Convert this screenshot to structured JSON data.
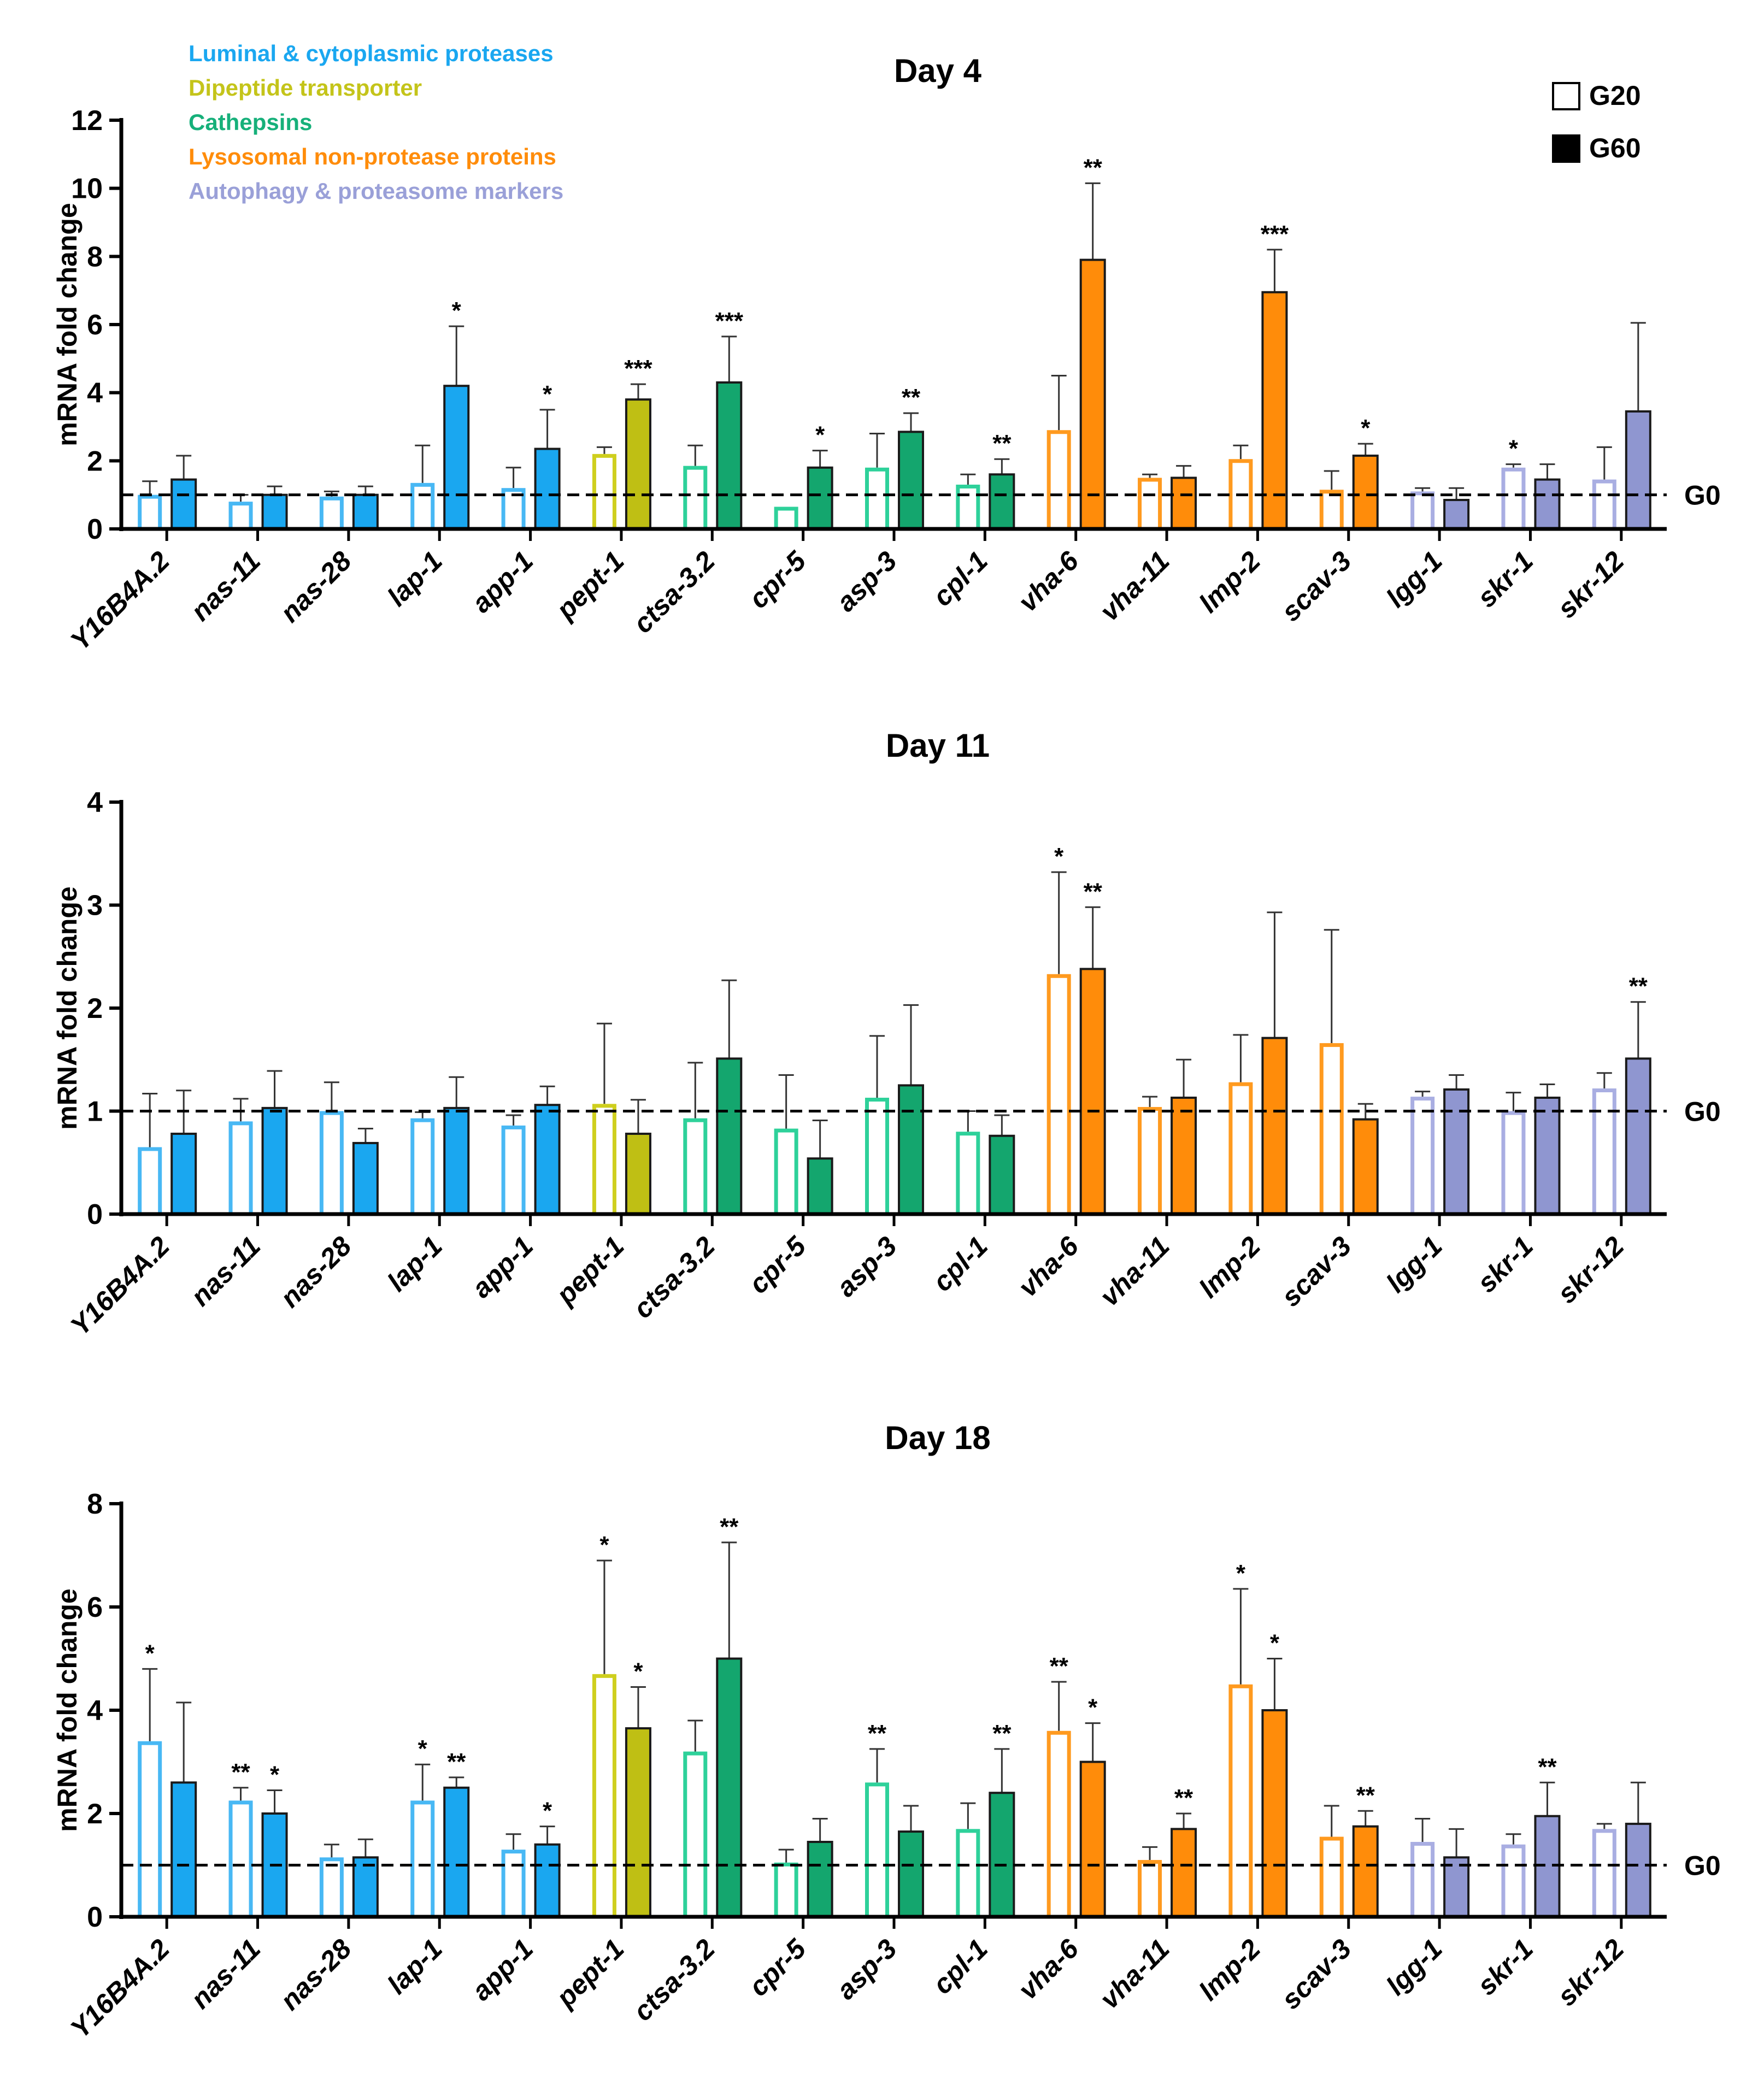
{
  "genes": [
    "Y16B4A.2",
    "nas-11",
    "nas-28",
    "lap-1",
    "app-1",
    "pept-1",
    "ctsa-3.2",
    "cpr-5",
    "asp-3",
    "cpl-1",
    "vha-6",
    "vha-11",
    "lmp-2",
    "scav-3",
    "lgg-1",
    "skr-1",
    "skr-12"
  ],
  "gene_groups": [
    0,
    0,
    0,
    0,
    0,
    1,
    2,
    2,
    2,
    2,
    3,
    3,
    3,
    3,
    4,
    4,
    4
  ],
  "category_legend": [
    {
      "label": "Luminal & cytoplasmic proteases",
      "color": "#1aa7f0"
    },
    {
      "label": "Dipeptide transporter",
      "color": "#c4c41a"
    },
    {
      "label": "Cathepsins",
      "color": "#16b07a"
    },
    {
      "label": "Lysosomal non-protease proteins",
      "color": "#ff8c0a"
    },
    {
      "label": "Autophagy & proteasome markers",
      "color": "#9aa0d8"
    }
  ],
  "palette": {
    "outline": [
      "#48b8f4",
      "#cfcf1e",
      "#2ed19a",
      "#ff9a1f",
      "#a9aee2"
    ],
    "fill": [
      "#1aa7f0",
      "#bfbf14",
      "#14a66e",
      "#ff8c0a",
      "#8f96d0"
    ]
  },
  "source_legend": [
    {
      "label": "G20",
      "style": "open"
    },
    {
      "label": "G60",
      "style": "filled"
    }
  ],
  "reference_label": "G0",
  "chart_data": [
    {
      "type": "bar",
      "title": "Day 4",
      "ylabel": "mRNA fold change",
      "ylim": [
        0,
        12
      ],
      "yticks": [
        0,
        2,
        4,
        6,
        8,
        10,
        12
      ],
      "reference_line": 1,
      "categories": [
        "Y16B4A.2",
        "nas-11",
        "nas-28",
        "lap-1",
        "app-1",
        "pept-1",
        "ctsa-3.2",
        "cpr-5",
        "asp-3",
        "cpl-1",
        "vha-6",
        "vha-11",
        "lmp-2",
        "scav-3",
        "lgg-1",
        "skr-1",
        "skr-12"
      ],
      "series": [
        {
          "name": "G20",
          "values": [
            1.0,
            0.8,
            0.95,
            1.35,
            1.2,
            2.2,
            1.85,
            0.65,
            1.8,
            1.3,
            2.9,
            1.5,
            2.05,
            1.15,
            1.1,
            1.8,
            1.45
          ],
          "errors": [
            0.4,
            0.2,
            0.15,
            1.1,
            0.6,
            0.2,
            0.6,
            0.0,
            1.0,
            0.3,
            1.6,
            0.1,
            0.4,
            0.55,
            0.1,
            0.1,
            0.95
          ],
          "stars": [
            "",
            "",
            "",
            "",
            "",
            "",
            "",
            "",
            "",
            "",
            "",
            "",
            "",
            "",
            "",
            "*",
            ""
          ]
        },
        {
          "name": "G60",
          "values": [
            1.45,
            1.0,
            1.0,
            4.2,
            2.35,
            3.8,
            4.3,
            1.8,
            2.85,
            1.6,
            7.9,
            1.5,
            6.95,
            2.15,
            0.85,
            1.45,
            3.45
          ],
          "errors": [
            0.7,
            0.25,
            0.25,
            1.75,
            1.15,
            0.45,
            1.35,
            0.5,
            0.55,
            0.45,
            2.25,
            0.35,
            1.25,
            0.35,
            0.35,
            0.45,
            2.6
          ],
          "stars": [
            "",
            "",
            "",
            "*",
            "*",
            "***",
            "***",
            "*",
            "**",
            "**",
            "**",
            "",
            "***",
            "*",
            "",
            "",
            ""
          ]
        }
      ]
    },
    {
      "type": "bar",
      "title": "Day 11",
      "ylabel": "mRNA fold change",
      "ylim": [
        0,
        4
      ],
      "yticks": [
        0,
        1,
        2,
        3,
        4
      ],
      "reference_line": 1,
      "categories": [
        "Y16B4A.2",
        "nas-11",
        "nas-28",
        "lap-1",
        "app-1",
        "pept-1",
        "ctsa-3.2",
        "cpr-5",
        "asp-3",
        "cpl-1",
        "vha-6",
        "vha-11",
        "lmp-2",
        "scav-3",
        "lgg-1",
        "skr-1",
        "skr-12"
      ],
      "series": [
        {
          "name": "G20",
          "values": [
            0.65,
            0.9,
            1.0,
            0.93,
            0.86,
            1.07,
            0.93,
            0.83,
            1.13,
            0.8,
            2.33,
            1.04,
            1.28,
            1.66,
            1.14,
            1.0,
            1.22
          ],
          "errors": [
            0.52,
            0.22,
            0.28,
            0.06,
            0.1,
            0.78,
            0.54,
            0.52,
            0.6,
            0.2,
            0.99,
            0.1,
            0.46,
            1.1,
            0.05,
            0.18,
            0.15
          ],
          "stars": [
            "",
            "",
            "",
            "",
            "",
            "",
            "",
            "",
            "",
            "",
            "*",
            "",
            "",
            "",
            "",
            "",
            ""
          ]
        },
        {
          "name": "G60",
          "values": [
            0.78,
            1.03,
            0.69,
            1.03,
            1.06,
            0.78,
            1.51,
            0.54,
            1.25,
            0.76,
            2.38,
            1.13,
            1.71,
            0.92,
            1.21,
            1.13,
            1.51
          ],
          "errors": [
            0.42,
            0.36,
            0.14,
            0.3,
            0.18,
            0.33,
            0.76,
            0.37,
            0.78,
            0.2,
            0.6,
            0.37,
            1.22,
            0.15,
            0.14,
            0.13,
            0.55
          ],
          "stars": [
            "",
            "",
            "",
            "",
            "",
            "",
            "",
            "",
            "",
            "",
            "**",
            "",
            "",
            "",
            "",
            "",
            "**"
          ]
        }
      ]
    },
    {
      "type": "bar",
      "title": "Day 18",
      "ylabel": "mRNA fold change",
      "ylim": [
        0,
        8
      ],
      "yticks": [
        0,
        2,
        4,
        6,
        8
      ],
      "reference_line": 1,
      "categories": [
        "Y16B4A.2",
        "nas-11",
        "nas-28",
        "lap-1",
        "app-1",
        "pept-1",
        "ctsa-3.2",
        "cpr-5",
        "asp-3",
        "cpl-1",
        "vha-6",
        "vha-11",
        "lmp-2",
        "scav-3",
        "lgg-1",
        "skr-1",
        "skr-12"
      ],
      "series": [
        {
          "name": "G20",
          "values": [
            3.4,
            2.25,
            1.15,
            2.25,
            1.3,
            4.7,
            3.2,
            1.05,
            2.6,
            1.7,
            3.6,
            1.1,
            4.5,
            1.55,
            1.45,
            1.4,
            1.7
          ],
          "errors": [
            1.4,
            0.25,
            0.25,
            0.7,
            0.3,
            2.2,
            0.6,
            0.25,
            0.65,
            0.5,
            0.95,
            0.25,
            1.85,
            0.6,
            0.45,
            0.2,
            0.1
          ],
          "stars": [
            "*",
            "**",
            "",
            "*",
            "",
            "*",
            "",
            "",
            "**",
            "",
            "**",
            "",
            "*",
            "",
            "",
            "",
            ""
          ]
        },
        {
          "name": "G60",
          "values": [
            2.6,
            2.0,
            1.15,
            2.5,
            1.4,
            3.65,
            5.0,
            1.45,
            1.65,
            2.4,
            3.0,
            1.7,
            4.0,
            1.75,
            1.15,
            1.95,
            1.8
          ],
          "errors": [
            1.55,
            0.45,
            0.35,
            0.2,
            0.35,
            0.8,
            2.25,
            0.45,
            0.5,
            0.85,
            0.75,
            0.3,
            1.0,
            0.3,
            0.55,
            0.65,
            0.8
          ],
          "stars": [
            "",
            "*",
            "",
            "**",
            "*",
            "*",
            "**",
            "",
            "",
            "**",
            "*",
            "**",
            "*",
            "**",
            "",
            "**",
            ""
          ]
        }
      ]
    }
  ]
}
